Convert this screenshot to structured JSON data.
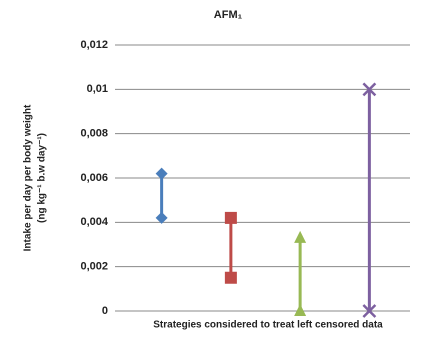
{
  "chart_data": {
    "type": "range",
    "title": "AFM₁",
    "y_label": [
      "Intake per day per body weight",
      "(ng kg⁻¹ b.w day⁻¹)"
    ],
    "x_label": "Strategies considered to treat left censored data",
    "ylim": [
      0,
      0.012
    ],
    "yticks": [
      0,
      {
        "value": 0.002,
        "label": "0,002"
      },
      {
        "value": 0.004,
        "label": "0,004"
      },
      {
        "value": 0.006,
        "label": "0,006"
      },
      {
        "value": 0.008,
        "label": "0,008"
      },
      {
        "value": 0.01,
        "label": "0,01"
      },
      {
        "value": 0.012,
        "label": "0,012"
      }
    ],
    "grid": true,
    "series": [
      {
        "color": "#4a7ebb",
        "marker": "diamond",
        "values": [
          0.0042,
          0.0062
        ]
      },
      {
        "color": "#be4b48",
        "marker": "square",
        "values": [
          0.0015,
          0.0042
        ]
      },
      {
        "color": "#98b954",
        "marker": "triangle",
        "values": [
          0,
          0.0033
        ]
      },
      {
        "color": "#7d60a0",
        "marker": "x",
        "values": [
          0,
          0.01
        ]
      }
    ]
  }
}
